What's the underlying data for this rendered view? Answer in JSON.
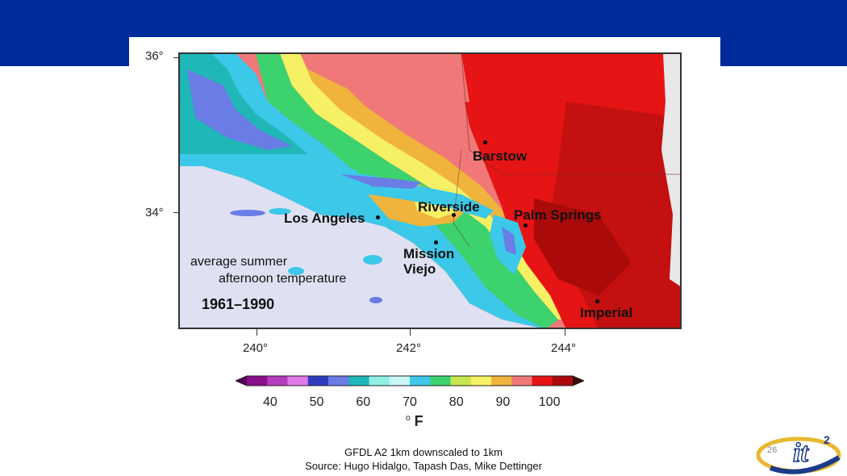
{
  "slide": {
    "page_number": "26",
    "caption_line1": "GFDL A2 1km downscaled to 1km",
    "caption_line2": "Source: Hugo Hidalgo, Tapash Das, Mike Dettinger"
  },
  "map": {
    "lat_ticks": [
      "36°",
      "34°"
    ],
    "lon_ticks": [
      "240°",
      "242°",
      "244°"
    ],
    "cities": [
      "Barstow",
      "Riverside",
      "Palm Springs",
      "Los Angeles",
      "Mission Viejo",
      "Imperial"
    ],
    "note_line1": "average summer",
    "note_line2": "afternoon temperature",
    "period": "1961–1990"
  },
  "colorbar": {
    "ticks": [
      "40",
      "50",
      "60",
      "70",
      "80",
      "90",
      "100"
    ],
    "unit_degree": "o",
    "unit_letter": "F",
    "colors": [
      "#8a0f8a",
      "#b43cc0",
      "#e07ae6",
      "#2f3cbf",
      "#6a7ce6",
      "#1fb7b7",
      "#8ff0e6",
      "#c8f7f7",
      "#3cc8e8",
      "#3cd26e",
      "#c8e650",
      "#f6f064",
      "#f0b43c",
      "#f07878",
      "#e61414",
      "#aa0a0a"
    ]
  },
  "logo": {
    "text": "it",
    "superscript": "2"
  }
}
